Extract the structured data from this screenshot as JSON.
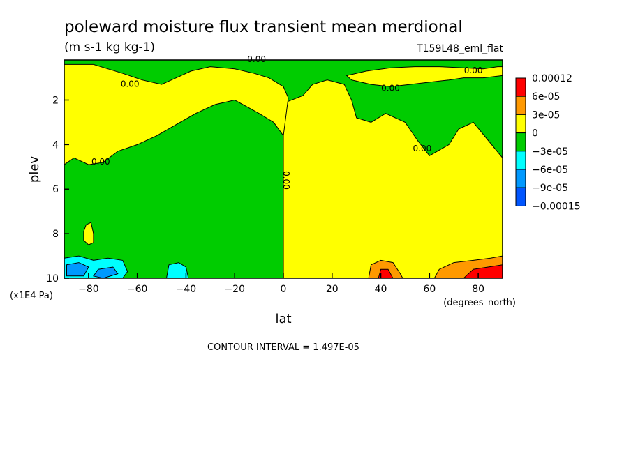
{
  "chart_data": {
    "type": "heatmap",
    "title": "poleward moisture flux transient mean merdional",
    "subtitle": "(m s-1 kg kg-1)",
    "dataset_label": "T159L48_eml_flat",
    "xlabel": "lat",
    "x_units": "(degrees_north)",
    "ylabel": "plev",
    "y_units": "(x1E4 Pa)",
    "xlim": [
      -90,
      90
    ],
    "ylim": [
      10,
      0.2
    ],
    "x_ticks": [
      -80,
      -60,
      -40,
      -20,
      0,
      20,
      40,
      60,
      80
    ],
    "y_ticks": [
      2,
      4,
      6,
      8,
      10
    ],
    "contour_interval_text": "CONTOUR INTERVAL = 1.497E-05",
    "contour_labels": [
      {
        "text": "0.00",
        "x": -11,
        "y": 0.3
      },
      {
        "text": "0.00",
        "x": 78,
        "y": 0.8
      },
      {
        "text": "0.00",
        "x": -63,
        "y": 1.4
      },
      {
        "text": "0.00",
        "x": 44,
        "y": 1.6
      },
      {
        "text": "0.00",
        "x": -75,
        "y": 4.9
      },
      {
        "text": "0.00",
        "x": 57,
        "y": 4.3
      },
      {
        "text": "0.00",
        "x": 0,
        "y": 5.6
      }
    ],
    "legend": [
      {
        "label": "0.00012",
        "color": "#ff0000"
      },
      {
        "label": "6e-05",
        "color": "#ff9900"
      },
      {
        "label": "3e-05",
        "color": "#ffff00"
      },
      {
        "label": "0",
        "color": "#00cc00"
      },
      {
        "label": "−3e-05",
        "color": "#00ffff"
      },
      {
        "label": "−6e-05",
        "color": "#0099ff"
      },
      {
        "label": "−9e-05",
        "color": "#0055ff"
      },
      {
        "label": "−0.00015",
        "color": ""
      }
    ],
    "regions": [
      {
        "name": "yellow-nh-lower",
        "color": "#ffff00",
        "points": [
          [
            0,
            10
          ],
          [
            0,
            3.5
          ],
          [
            1,
            2.1
          ],
          [
            8,
            1.8
          ],
          [
            12,
            1.3
          ],
          [
            18,
            1.1
          ],
          [
            25,
            1.3
          ],
          [
            28,
            2
          ],
          [
            30,
            2.8
          ],
          [
            36,
            3.0
          ],
          [
            42,
            2.6
          ],
          [
            50,
            3.0
          ],
          [
            55,
            3.8
          ],
          [
            60,
            4.5
          ],
          [
            68,
            4.0
          ],
          [
            72,
            3.3
          ],
          [
            78,
            3.0
          ],
          [
            84,
            3.8
          ],
          [
            90,
            4.6
          ],
          [
            90,
            10
          ]
        ]
      },
      {
        "name": "yellow-sh-upper",
        "color": "#ffff00",
        "points": [
          [
            -90,
            0.4
          ],
          [
            -78,
            0.4
          ],
          [
            -72,
            0.6
          ],
          [
            -66,
            0.8
          ],
          [
            -58,
            1.1
          ],
          [
            -50,
            1.3
          ],
          [
            -44,
            1.0
          ],
          [
            -38,
            0.7
          ],
          [
            -30,
            0.5
          ],
          [
            -20,
            0.6
          ],
          [
            -12,
            0.8
          ],
          [
            -6,
            1.0
          ],
          [
            0,
            1.4
          ],
          [
            2,
            1.9
          ],
          [
            0,
            3.6
          ],
          [
            -4,
            3.0
          ],
          [
            -10,
            2.6
          ],
          [
            -15,
            2.3
          ],
          [
            -20,
            2.0
          ],
          [
            -28,
            2.2
          ],
          [
            -36,
            2.6
          ],
          [
            -44,
            3.1
          ],
          [
            -52,
            3.6
          ],
          [
            -60,
            4.0
          ],
          [
            -68,
            4.3
          ],
          [
            -74,
            4.8
          ],
          [
            -80,
            4.9
          ],
          [
            -86,
            4.6
          ],
          [
            -90,
            4.9
          ]
        ]
      },
      {
        "name": "yellow-nh-upper",
        "color": "#ffff00",
        "points": [
          [
            26,
            0.9
          ],
          [
            34,
            0.7
          ],
          [
            44,
            0.55
          ],
          [
            54,
            0.5
          ],
          [
            64,
            0.5
          ],
          [
            74,
            0.55
          ],
          [
            82,
            0.6
          ],
          [
            88,
            0.5
          ],
          [
            90,
            0.5
          ],
          [
            90,
            0.9
          ],
          [
            82,
            1.0
          ],
          [
            74,
            1.0
          ],
          [
            68,
            1.1
          ],
          [
            60,
            1.2
          ],
          [
            52,
            1.3
          ],
          [
            44,
            1.4
          ],
          [
            36,
            1.3
          ],
          [
            28,
            1.1
          ]
        ]
      },
      {
        "name": "yellow-sh-patch",
        "color": "#ffff00",
        "points": [
          [
            -81,
            7.6
          ],
          [
            -79,
            7.5
          ],
          [
            -78,
            8.0
          ],
          [
            -78,
            8.4
          ],
          [
            -80,
            8.5
          ],
          [
            -82,
            8.3
          ],
          [
            -82,
            7.9
          ]
        ]
      },
      {
        "name": "cyan-sh-80",
        "color": "#00ffff",
        "points": [
          [
            -90,
            9.1
          ],
          [
            -84,
            9.0
          ],
          [
            -78,
            9.2
          ],
          [
            -72,
            9.1
          ],
          [
            -66,
            9.2
          ],
          [
            -64,
            9.7
          ],
          [
            -66,
            10
          ],
          [
            -90,
            10
          ]
        ]
      },
      {
        "name": "cyan-sh-40",
        "color": "#00ffff",
        "points": [
          [
            -47,
            9.4
          ],
          [
            -43,
            9.3
          ],
          [
            -40,
            9.5
          ],
          [
            -39,
            10
          ],
          [
            -48,
            10
          ]
        ]
      },
      {
        "name": "blue-sh-80",
        "color": "#0099ff",
        "points": [
          [
            -89,
            9.4
          ],
          [
            -84,
            9.3
          ],
          [
            -80,
            9.5
          ],
          [
            -82,
            9.9
          ],
          [
            -89,
            9.9
          ]
        ]
      },
      {
        "name": "blue-sh-70",
        "color": "#0099ff",
        "points": [
          [
            -76,
            9.6
          ],
          [
            -70,
            9.5
          ],
          [
            -68,
            9.8
          ],
          [
            -74,
            10
          ],
          [
            -78,
            9.9
          ]
        ]
      },
      {
        "name": "orange-nh-40",
        "color": "#ff9900",
        "points": [
          [
            35,
            10
          ],
          [
            36,
            9.4
          ],
          [
            40,
            9.2
          ],
          [
            45,
            9.3
          ],
          [
            48,
            9.8
          ],
          [
            49,
            10
          ]
        ]
      },
      {
        "name": "orange-nh-80",
        "color": "#ff9900",
        "points": [
          [
            62,
            10
          ],
          [
            64,
            9.6
          ],
          [
            70,
            9.3
          ],
          [
            78,
            9.2
          ],
          [
            85,
            9.1
          ],
          [
            90,
            9.0
          ],
          [
            90,
            10
          ]
        ]
      },
      {
        "name": "red-nh-40",
        "color": "#ff0000",
        "points": [
          [
            39,
            10
          ],
          [
            40,
            9.6
          ],
          [
            43,
            9.6
          ],
          [
            45,
            10
          ]
        ]
      },
      {
        "name": "red-nh-80",
        "color": "#ff0000",
        "points": [
          [
            74,
            10
          ],
          [
            78,
            9.6
          ],
          [
            84,
            9.5
          ],
          [
            90,
            9.4
          ],
          [
            90,
            10
          ]
        ]
      }
    ]
  }
}
